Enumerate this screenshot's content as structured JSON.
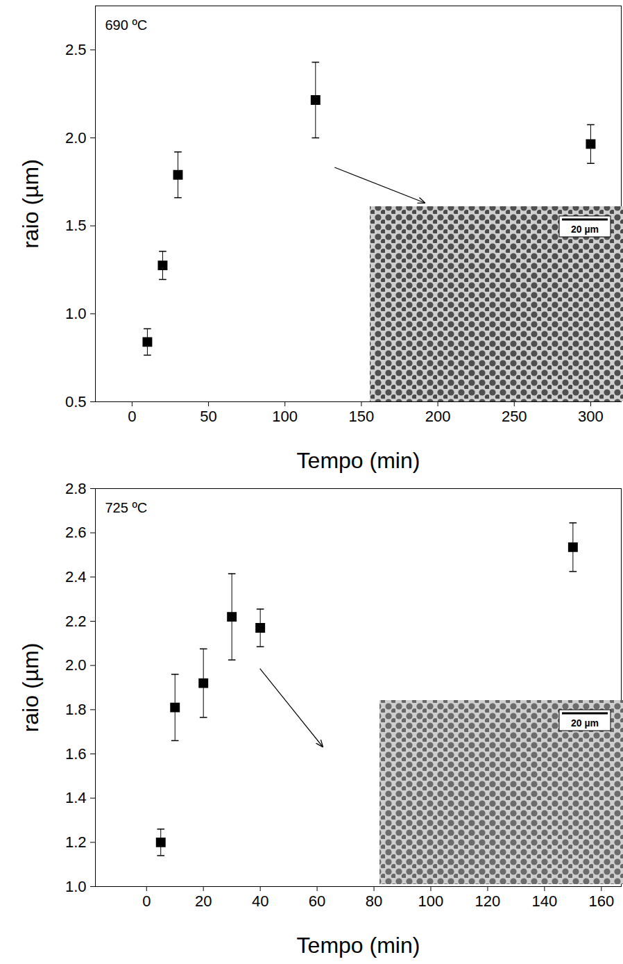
{
  "chart_data": [
    {
      "type": "scatter",
      "annotation": "690 ºC",
      "inset_scale": "20 µm",
      "x_label": "Tempo (min)",
      "y_label": "raio (µm)",
      "x": [
        10,
        20,
        30,
        120,
        300
      ],
      "values": [
        0.84,
        1.275,
        1.79,
        2.215,
        1.965
      ],
      "errors": [
        0.075,
        0.08,
        0.13,
        0.215,
        0.11
      ],
      "color": "#000000",
      "marker": "square",
      "xlim": [
        -24,
        320
      ],
      "xticks": [
        0,
        50,
        100,
        150,
        200,
        250,
        300
      ],
      "ylim": [
        0.5,
        2.75
      ],
      "yticks": [
        0.5,
        {
          "value": 1,
          "label": "1.0"
        },
        1.5,
        {
          "value": 2,
          "label": "2.0"
        },
        2.5
      ],
      "grid": false
    },
    {
      "type": "scatter",
      "annotation": "725 ºC",
      "inset_scale": "20 µm",
      "x_label": "Tempo (min)",
      "y_label": "raio (µm)",
      "x": [
        5,
        10,
        20,
        30,
        40,
        150
      ],
      "values": [
        1.2,
        1.81,
        1.92,
        2.22,
        2.17,
        2.535
      ],
      "errors": [
        0.06,
        0.15,
        0.155,
        0.195,
        0.085,
        0.11
      ],
      "color": "#000000",
      "marker": "square",
      "xlim": [
        -18,
        167
      ],
      "xticks": [
        0,
        20,
        40,
        60,
        80,
        100,
        120,
        140,
        160
      ],
      "ylim": [
        1,
        2.8
      ],
      "yticks": [
        {
          "value": 1,
          "label": "1.0"
        },
        1.2,
        1.4,
        1.6,
        1.8,
        {
          "value": 2,
          "label": "2.0"
        },
        2.2,
        2.4,
        2.6,
        2.8
      ],
      "grid": false
    }
  ]
}
